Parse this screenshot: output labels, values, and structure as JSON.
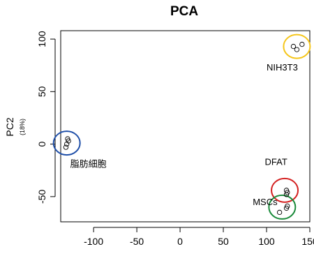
{
  "chart_data": {
    "type": "scatter",
    "title": "PCA",
    "xlabel": "",
    "ylabel": "PC2",
    "ylabel_sub": "(18%)",
    "xlim": [
      -138,
      150
    ],
    "ylim": [
      -74,
      108
    ],
    "x_ticks": [
      -100,
      -50,
      0,
      50,
      100,
      150
    ],
    "y_ticks": [
      -50,
      0,
      50,
      100
    ],
    "grid": false,
    "legend": "none",
    "points": [
      {
        "x": 131,
        "y": 93
      },
      {
        "x": 135,
        "y": 90
      },
      {
        "x": 141,
        "y": 95
      },
      {
        "x": -130,
        "y": 5
      },
      {
        "x": -129,
        "y": 3
      },
      {
        "x": -131,
        "y": 0
      },
      {
        "x": -132,
        "y": -3
      },
      {
        "x": 123,
        "y": -44
      },
      {
        "x": 124,
        "y": -46
      },
      {
        "x": 123,
        "y": -48
      },
      {
        "x": 124,
        "y": -59
      },
      {
        "x": 123,
        "y": -61
      },
      {
        "x": 115,
        "y": -65
      }
    ],
    "clusters": [
      {
        "label": "NIH3T3",
        "color": "#f5c518",
        "cx": 135,
        "cy": 93,
        "label_x": 100,
        "label_y": 70
      },
      {
        "label": "脂肪細胞",
        "color": "#1f4fa8",
        "cx": -131,
        "cy": 1,
        "label_x": -127,
        "label_y": -22
      },
      {
        "label": "DFAT",
        "color": "#d42020",
        "cx": 121,
        "cy": -44,
        "label_x": 98,
        "label_y": -20
      },
      {
        "label": "MSCs",
        "color": "#1a8a3a",
        "cx": 118,
        "cy": -60,
        "label_x": 84,
        "label_y": -58
      }
    ]
  }
}
